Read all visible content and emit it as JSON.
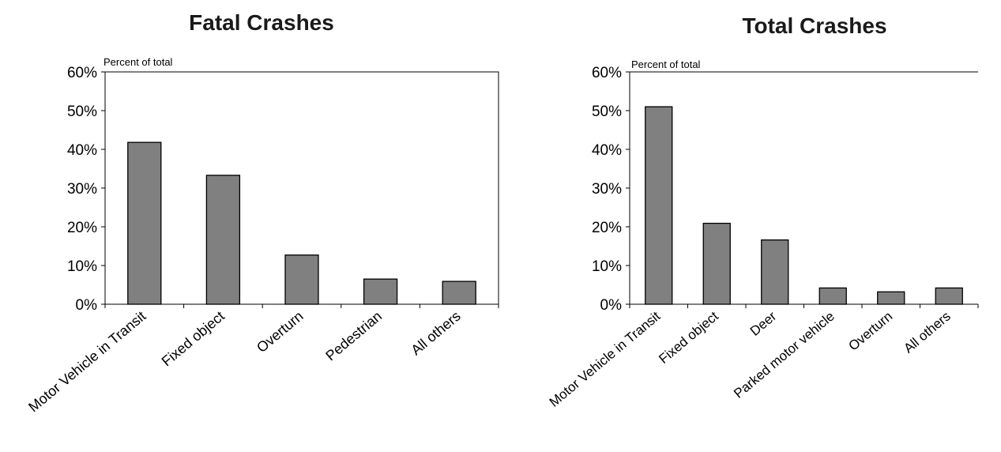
{
  "chart_data": [
    {
      "type": "bar",
      "title": "Fatal Crashes",
      "ylabel": "Percent of total",
      "categories": [
        "Motor Vehicle in Transit",
        "Fixed object",
        "Overturn",
        "Pedestrian",
        "All others"
      ],
      "values": [
        41.8,
        33.3,
        12.7,
        6.5,
        5.9
      ],
      "ylim": [
        0,
        60
      ],
      "yticks": [
        "0%",
        "10%",
        "20%",
        "30%",
        "40%",
        "50%",
        "60%"
      ],
      "grid": false,
      "plot_border": true,
      "bar_color": "#808080"
    },
    {
      "type": "bar",
      "title": "Total Crashes",
      "ylabel": "Percent of total",
      "categories": [
        "Motor Vehicle in Transit",
        "Fixed object",
        "Deer",
        "Parked motor vehicle",
        "Overturn",
        "All others"
      ],
      "values": [
        51.0,
        20.9,
        16.6,
        4.2,
        3.2,
        4.2
      ],
      "ylim": [
        0,
        60
      ],
      "yticks": [
        "0%",
        "10%",
        "20%",
        "30%",
        "40%",
        "50%",
        "60%"
      ],
      "grid": false,
      "plot_border": false,
      "bar_color": "#808080"
    }
  ]
}
